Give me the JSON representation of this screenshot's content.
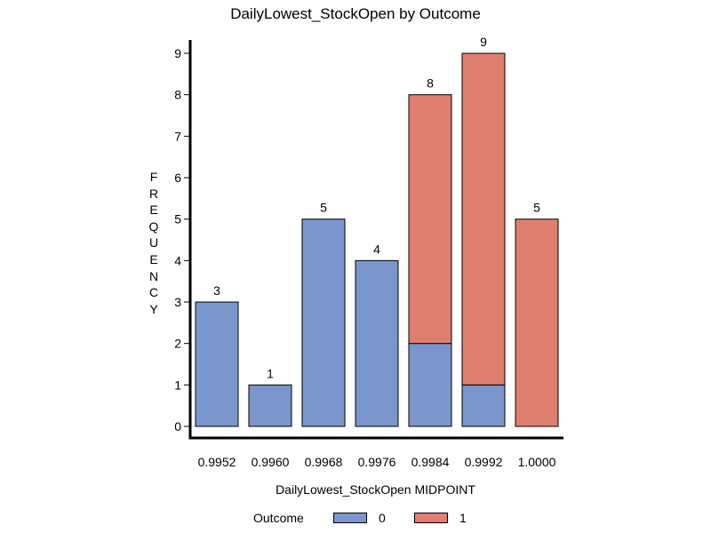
{
  "chart_data": {
    "type": "bar",
    "stacked": true,
    "title": "DailyLowest_StockOpen by Outcome",
    "xlabel": "DailyLowest_StockOpen MIDPOINT",
    "ylabel": "FREQUENCY",
    "categories": [
      "0.9952",
      "0.9960",
      "0.9968",
      "0.9976",
      "0.9984",
      "0.9992",
      "1.0000"
    ],
    "series": [
      {
        "name": "0",
        "values": [
          3,
          1,
          5,
          4,
          2,
          1,
          0
        ],
        "color": "#7b96cc"
      },
      {
        "name": "1",
        "values": [
          0,
          0,
          0,
          0,
          6,
          8,
          5
        ],
        "color": "#e07e6f"
      }
    ],
    "totals": [
      3,
      1,
      5,
      4,
      8,
      9,
      5
    ],
    "yticks": [
      0,
      1,
      2,
      3,
      4,
      5,
      6,
      7,
      8,
      9
    ],
    "ylim": [
      0,
      9
    ],
    "grid": false,
    "legend": {
      "title": "Outcome",
      "placement": "bottom"
    }
  }
}
